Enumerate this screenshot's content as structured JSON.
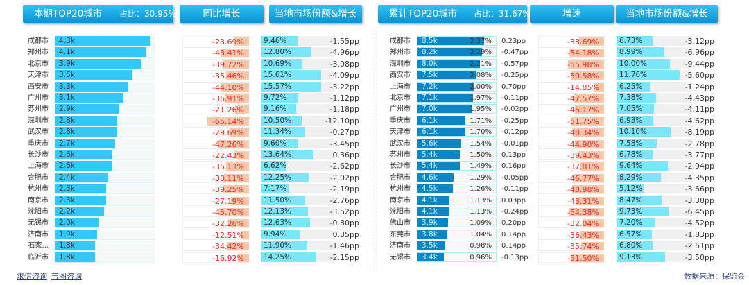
{
  "left": {
    "header_title": "本期TOP20城市",
    "header_share": "占比：30.95%",
    "header_yoy": "同比增长",
    "header_market": "当地市场份额&增长",
    "rows": [
      {
        "city": "成都市",
        "volume": "4.3k",
        "yoy": "-23.69%",
        "share": "9.46%",
        "change": "-1.55pp"
      },
      {
        "city": "郑州市",
        "volume": "4.1k",
        "yoy": "-43.41%",
        "share": "12.80%",
        "change": "-4.96pp"
      },
      {
        "city": "北京市",
        "volume": "3.9k",
        "yoy": "-39.72%",
        "share": "10.69%",
        "change": "-3.08pp"
      },
      {
        "city": "天津市",
        "volume": "3.5k",
        "yoy": "-35.46%",
        "share": "15.61%",
        "change": "-4.09pp"
      },
      {
        "city": "西安市",
        "volume": "3.3k",
        "yoy": "-44.10%",
        "share": "15.57%",
        "change": "-3.22pp"
      },
      {
        "city": "广州市",
        "volume": "3.1k",
        "yoy": "-36.91%",
        "share": "9.72%",
        "change": "-1.12pp"
      },
      {
        "city": "苏州市",
        "volume": "2.9k",
        "yoy": "-21.26%",
        "share": "9.16%",
        "change": "-1.18pp"
      },
      {
        "city": "深圳市",
        "volume": "2.8k",
        "yoy": "-65.14%",
        "share": "10.50%",
        "change": "-12.10pp"
      },
      {
        "city": "武汉市",
        "volume": "2.8k",
        "yoy": "-29.69%",
        "share": "11.34%",
        "change": "-0.27pp"
      },
      {
        "city": "重庆市",
        "volume": "2.7k",
        "yoy": "-47.26%",
        "share": "9.60%",
        "change": "-3.45pp"
      },
      {
        "city": "长沙市",
        "volume": "2.6k",
        "yoy": "-22.43%",
        "share": "13.64%",
        "change": "0.36pp"
      },
      {
        "city": "上海市",
        "volume": "2.6k",
        "yoy": "-35.13%",
        "share": "6.62%",
        "change": "-2.62pp"
      },
      {
        "city": "合肥市",
        "volume": "2.4k",
        "yoy": "-38.11%",
        "share": "12.25%",
        "change": "-2.02pp"
      },
      {
        "city": "杭州市",
        "volume": "2.3k",
        "yoy": "-39.25%",
        "share": "7.17%",
        "change": "-2.19pp"
      },
      {
        "city": "南京市",
        "volume": "2.3k",
        "yoy": "-27.19%",
        "share": "11.50%",
        "change": "-2.76pp"
      },
      {
        "city": "沈阳市",
        "volume": "2.2k",
        "yoy": "-45.70%",
        "share": "12.13%",
        "change": "-3.52pp"
      },
      {
        "city": "无锡市",
        "volume": "2.0k",
        "yoy": "-32.26%",
        "share": "12.63%",
        "change": "-0.80pp"
      },
      {
        "city": "济南市",
        "volume": "1.9k",
        "yoy": "-12.51%",
        "share": "9.94%",
        "change": "0.35pp"
      },
      {
        "city": "石家...",
        "volume": "1.8k",
        "yoy": "-34.42%",
        "share": "11.90%",
        "change": "-1.46pp"
      },
      {
        "city": "临沂市",
        "volume": "1.8k",
        "yoy": "-16.92%",
        "share": "14.25%",
        "change": "-2.15pp"
      }
    ]
  },
  "right": {
    "header_title": "累计TOP20城市",
    "header_share": "占比：31.67%",
    "header_yoy": "增速",
    "header_market": "当地市场份额&增长",
    "rows": [
      {
        "city": "成都市",
        "volume": "8.5k",
        "nat_share": "2.37%",
        "nat_change": "0.23pp",
        "yoy": "-38.69%",
        "share": "6.73%",
        "change": "-3.12pp"
      },
      {
        "city": "郑州市",
        "volume": "8.2k",
        "nat_share": "2.29%",
        "nat_change": "-0.47pp",
        "yoy": "-54.18%",
        "share": "8.99%",
        "change": "-6.96pp"
      },
      {
        "city": "深圳市",
        "volume": "8.0k",
        "nat_share": "2.21%",
        "nat_change": "-0.57pp",
        "yoy": "-55.98%",
        "share": "10.00%",
        "change": "-9.44pp"
      },
      {
        "city": "西安市",
        "volume": "7.5k",
        "nat_share": "2.08%",
        "nat_change": "-0.25pp",
        "yoy": "-50.58%",
        "share": "11.76%",
        "change": "-5.60pp"
      },
      {
        "city": "上海市",
        "volume": "7.2k",
        "nat_share": "2.00%",
        "nat_change": "0.70pp",
        "yoy": "-14.85%",
        "share": "6.25%",
        "change": "-1.24pp"
      },
      {
        "city": "北京市",
        "volume": "7.1k",
        "nat_share": "1.97%",
        "nat_change": "-0.11pp",
        "yoy": "-47.57%",
        "share": "7.38%",
        "change": "-4.43pp"
      },
      {
        "city": "广州市",
        "volume": "7.0k",
        "nat_share": "1.95%",
        "nat_change": "-0.02pp",
        "yoy": "-45.17%",
        "share": "7.05%",
        "change": "-4.11pp"
      },
      {
        "city": "重庆市",
        "volume": "6.1k",
        "nat_share": "1.71%",
        "nat_change": "-0.25pp",
        "yoy": "-51.75%",
        "share": "6.93%",
        "change": "-4.62pp"
      },
      {
        "city": "天津市",
        "volume": "6.1k",
        "nat_share": "1.70%",
        "nat_change": "-0.12pp",
        "yoy": "-48.34%",
        "share": "10.10%",
        "change": "-8.19pp"
      },
      {
        "city": "武汉市",
        "volume": "5.6k",
        "nat_share": "1.54%",
        "nat_change": "-0.01pp",
        "yoy": "-44.90%",
        "share": "7.58%",
        "change": "-2.78pp"
      },
      {
        "city": "苏州市",
        "volume": "5.4k",
        "nat_share": "1.50%",
        "nat_change": "0.13pp",
        "yoy": "-39.43%",
        "share": "6.78%",
        "change": "-3.77pp"
      },
      {
        "city": "长沙市",
        "volume": "5.4k",
        "nat_share": "1.49%",
        "nat_change": "0.16pp",
        "yoy": "-37.81%",
        "share": "9.64%",
        "change": "-2.94pp"
      },
      {
        "city": "合肥市",
        "volume": "4.6k",
        "nat_share": "1.29%",
        "nat_change": "-0.05pp",
        "yoy": "-46.77%",
        "share": "8.29%",
        "change": "-4.35pp"
      },
      {
        "city": "杭州市",
        "volume": "4.5k",
        "nat_share": "1.26%",
        "nat_change": "-0.11pp",
        "yoy": "-48.98%",
        "share": "5.12%",
        "change": "-3.66pp"
      },
      {
        "city": "南京市",
        "volume": "4.1k",
        "nat_share": "1.13%",
        "nat_change": "0.03pp",
        "yoy": "-43.31%",
        "share": "8.47%",
        "change": "-3.38pp"
      },
      {
        "city": "沈阳市",
        "volume": "4.1k",
        "nat_share": "1.13%",
        "nat_change": "-0.24pp",
        "yoy": "-54.38%",
        "share": "9.73%",
        "change": "-6.45pp"
      },
      {
        "city": "佛山市",
        "volume": "3.9k",
        "nat_share": "1.09%",
        "nat_change": "0.20pp",
        "yoy": "-32.04%",
        "share": "7.20%",
        "change": "-4.52pp"
      },
      {
        "city": "东莞市",
        "volume": "3.8k",
        "nat_share": "1.04%",
        "nat_change": "0.14pp",
        "yoy": "-36.43%",
        "share": "6.57%",
        "change": "-1.83pp"
      },
      {
        "city": "济南市",
        "volume": "3.5k",
        "nat_share": "0.98%",
        "nat_change": "0.14pp",
        "yoy": "-35.74%",
        "share": "6.80%",
        "change": "-2.61pp"
      },
      {
        "city": "无锡市",
        "volume": "3.4k",
        "nat_share": "0.96%",
        "nat_change": "-0.13pp",
        "yoy": "-51.50%",
        "share": "9.13%",
        "change": "-3.50pp"
      }
    ]
  },
  "footer": {
    "links": [
      "求信咨询",
      "吉图咨询"
    ],
    "source": "数据来源：保监会"
  },
  "colors": {
    "header": "#1aa8e6",
    "volume_bar": "#33c8f8",
    "cumulative_bar": "#0a86c6",
    "share_bar": "#7ae6fa",
    "yoy_bar": "#f7c8a9",
    "negative_text": "#ff2424"
  }
}
